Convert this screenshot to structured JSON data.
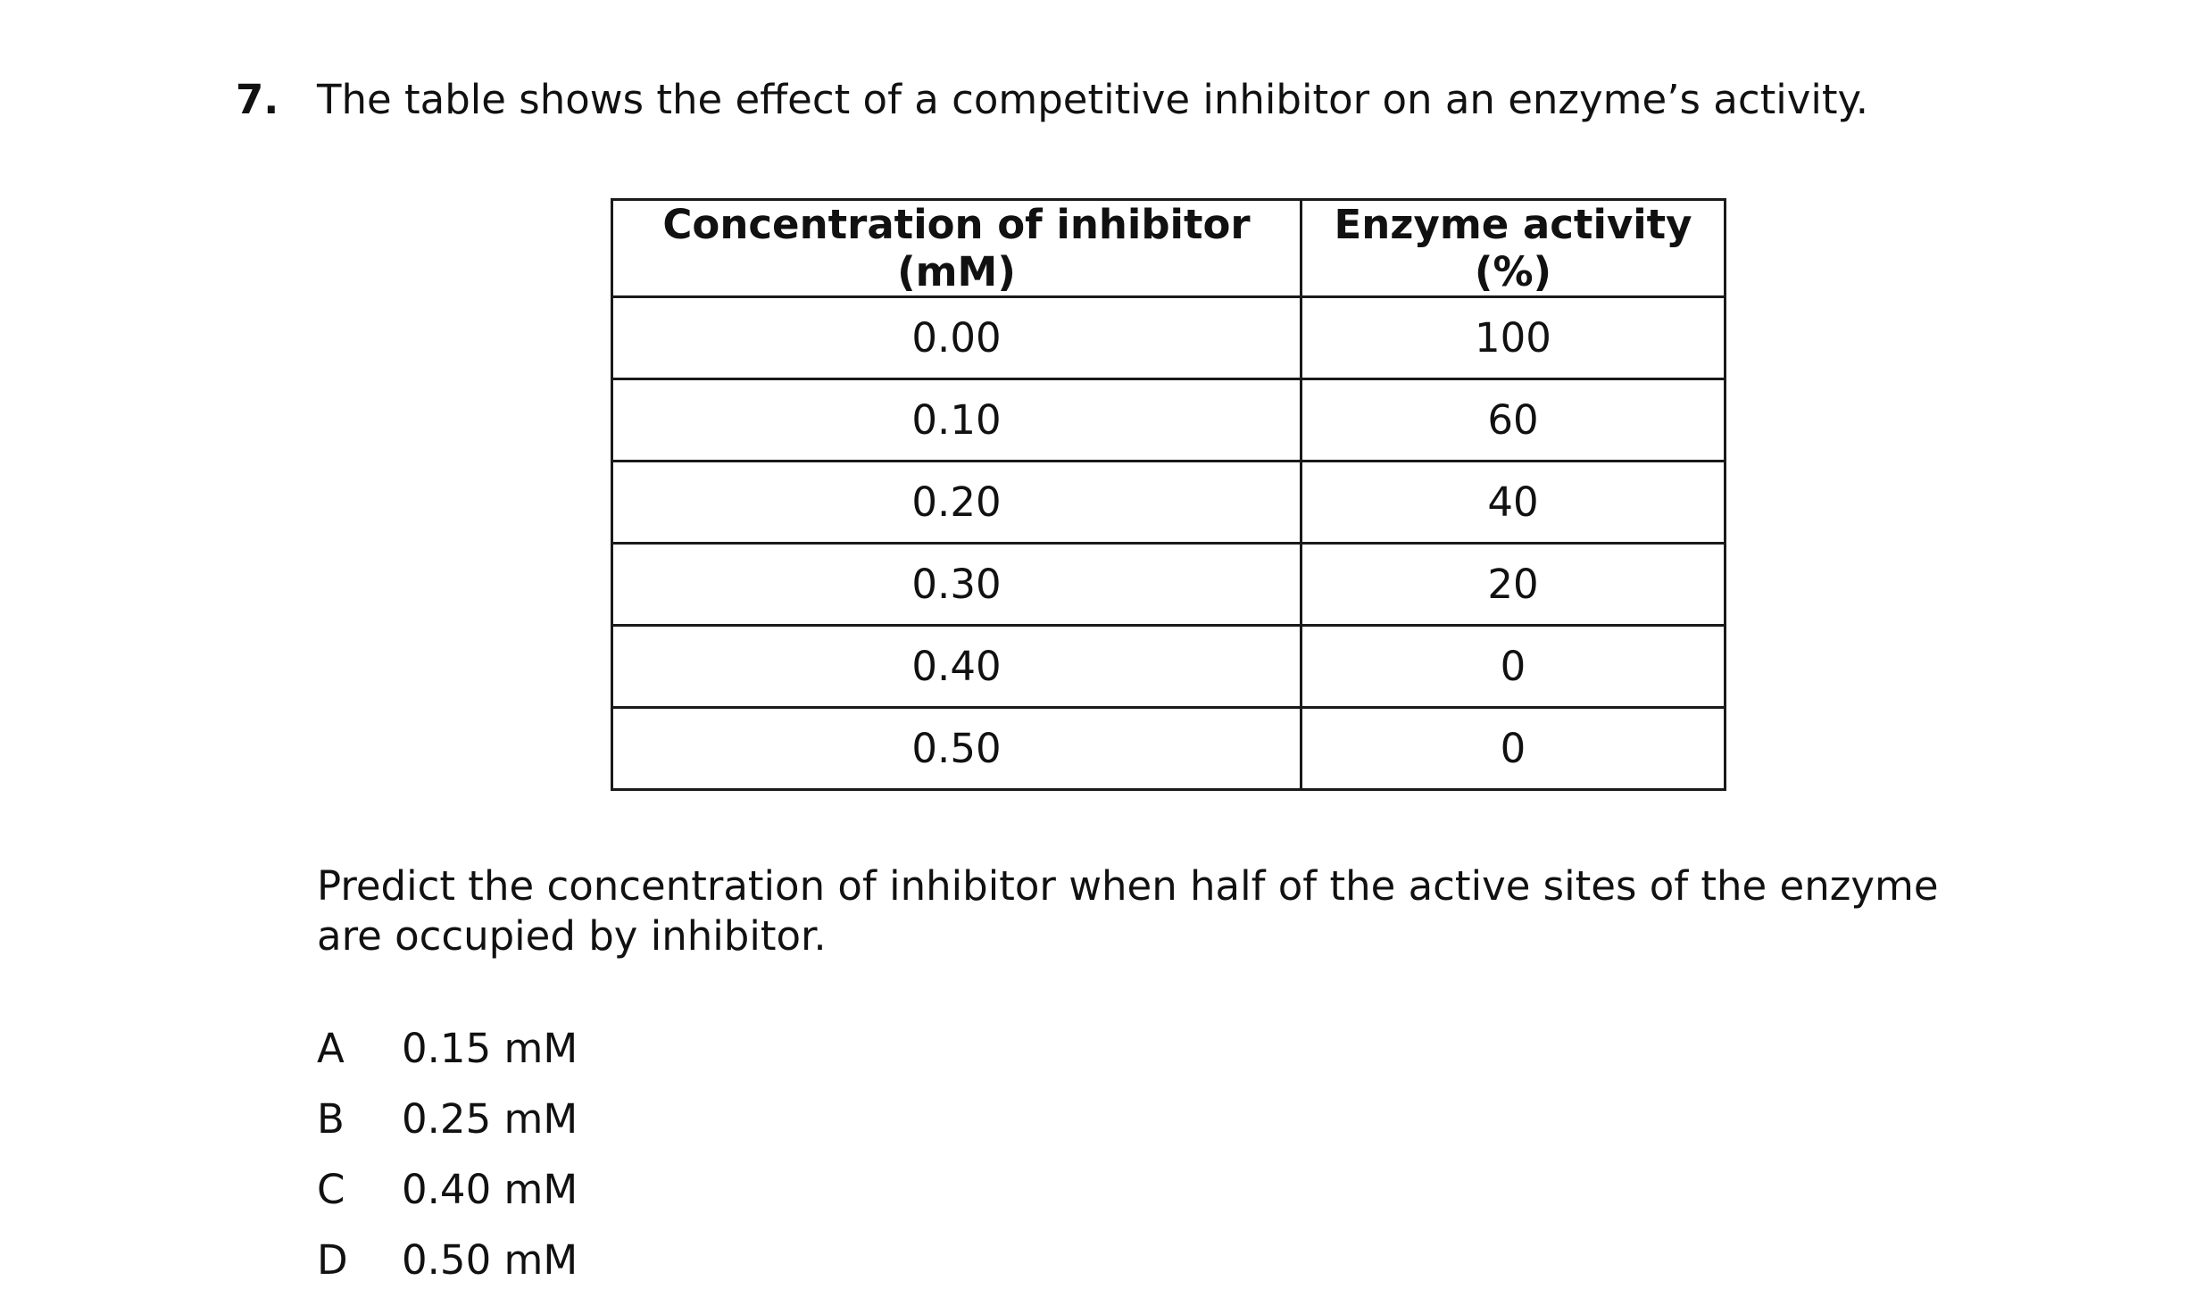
{
  "question": {
    "number": "7.",
    "stem": "The table shows the effect of a competitive inhibitor on an enzyme’s activity.",
    "table": {
      "headers": [
        "Concentration of inhibitor (mM)",
        "Enzyme activity (%)"
      ],
      "rows": [
        [
          "0.00",
          "100"
        ],
        [
          "0.10",
          "60"
        ],
        [
          "0.20",
          "40"
        ],
        [
          "0.30",
          "20"
        ],
        [
          "0.40",
          "0"
        ],
        [
          "0.50",
          "0"
        ]
      ]
    },
    "prompt": "Predict the concentration of inhibitor when half of the active sites of the enzyme are occupied by inhibitor.",
    "options": [
      {
        "letter": "A",
        "text": "0.15 mM"
      },
      {
        "letter": "B",
        "text": "0.25 mM"
      },
      {
        "letter": "C",
        "text": "0.40 mM"
      },
      {
        "letter": "D",
        "text": "0.50 mM"
      }
    ]
  }
}
